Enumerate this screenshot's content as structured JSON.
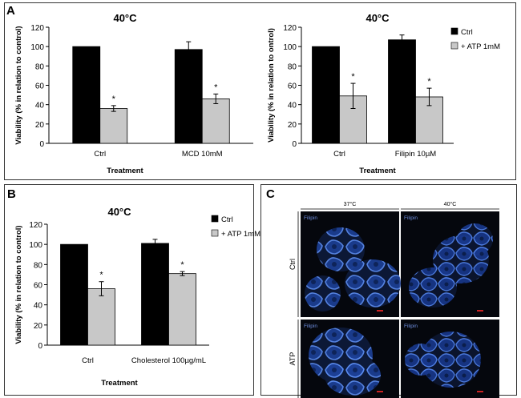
{
  "colors": {
    "ctrl_bar": "#000000",
    "atp_bar": "#c8c8c8",
    "cell_stain": "#3d6fd8",
    "background_dark": "#05070d",
    "scale_bar": "#cc2222"
  },
  "panel_labels": {
    "a": "A",
    "b": "B",
    "c": "C"
  },
  "chart_data": [
    {
      "id": "a-left",
      "type": "bar",
      "title": "40°C",
      "ylabel": "Viability (% in relation to control)",
      "xlabel": "Treatment",
      "categories": [
        "Ctrl",
        "MCD 10mM"
      ],
      "ylim": [
        0,
        120
      ],
      "yticks": [
        0,
        20,
        40,
        60,
        80,
        100,
        120
      ],
      "series": [
        {
          "name": "Ctrl",
          "values": [
            100,
            97
          ],
          "errors": [
            0,
            8
          ]
        },
        {
          "name": "+ ATP 1mM",
          "values": [
            36,
            46
          ],
          "errors": [
            3,
            5
          ]
        }
      ],
      "significance": [
        "*",
        "*"
      ],
      "legend": null
    },
    {
      "id": "a-right",
      "type": "bar",
      "title": "40°C",
      "ylabel": "Viability (% in relation to ontrol)",
      "xlabel": "Treatment",
      "categories": [
        "Ctrl",
        "Filipin 10µM"
      ],
      "ylim": [
        0,
        120
      ],
      "yticks": [
        0,
        20,
        40,
        60,
        80,
        100,
        120
      ],
      "series": [
        {
          "name": "Ctrl",
          "values": [
            100,
            107
          ],
          "errors": [
            0,
            5
          ]
        },
        {
          "name": "+ ATP 1mM",
          "values": [
            49,
            48
          ],
          "errors": [
            13,
            9
          ]
        }
      ],
      "significance": [
        "*",
        "*"
      ],
      "legend": "top-right"
    },
    {
      "id": "b",
      "type": "bar",
      "title": "40°C",
      "ylabel": "Viability (% in relation to control)",
      "xlabel": "Treatment",
      "categories": [
        "Ctrl",
        "Cholesterol 100µg/mL"
      ],
      "ylim": [
        0,
        120
      ],
      "yticks": [
        0,
        20,
        40,
        60,
        80,
        100,
        120
      ],
      "series": [
        {
          "name": "Ctrl",
          "values": [
            100,
            101
          ],
          "errors": [
            0,
            4
          ]
        },
        {
          "name": "+ ATP 1mM",
          "values": [
            56,
            71
          ],
          "errors": [
            7,
            2
          ]
        }
      ],
      "significance": [
        "*",
        "*"
      ],
      "legend": "top-right"
    }
  ],
  "micrographs": {
    "column_labels": [
      "37°C",
      "40°C"
    ],
    "row_labels": [
      "Ctrl",
      "ATP"
    ],
    "stain_label": "Filipin"
  }
}
